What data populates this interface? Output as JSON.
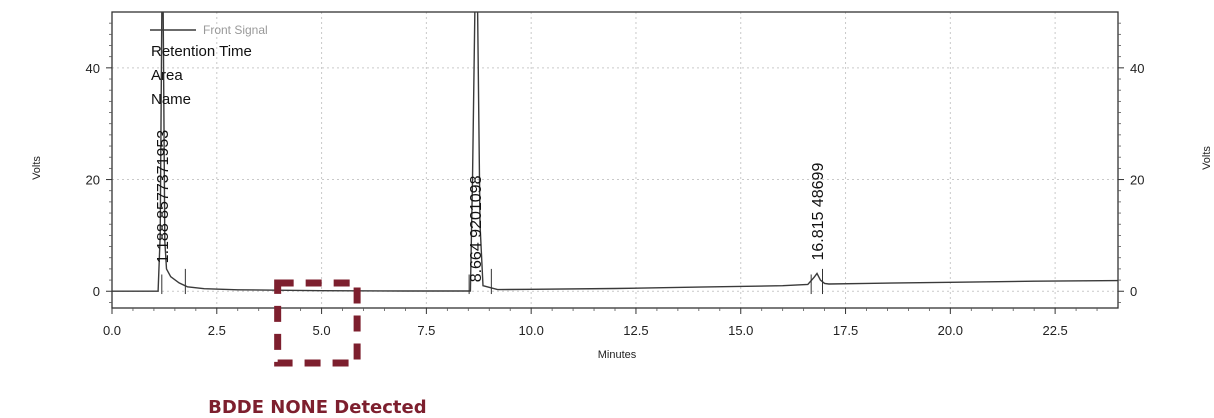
{
  "chart_data": {
    "type": "line",
    "title": "",
    "xlabel": "Minutes",
    "ylabel": "Volts",
    "ylabel_right": "Volts",
    "xlim": [
      0,
      24
    ],
    "ylim": [
      -3,
      50
    ],
    "x_ticks": [
      0,
      2.5,
      5,
      7.5,
      10,
      12.5,
      15,
      17.5,
      20,
      22.5
    ],
    "x_tick_labels": [
      "0.0",
      "2.5",
      "5.0",
      "7.5",
      "10.0",
      "12.5",
      "15.0",
      "17.5",
      "20.0",
      "22.5"
    ],
    "y_ticks": [
      0,
      20,
      40
    ],
    "y_tick_labels": [
      "0",
      "20",
      "40"
    ],
    "grid": true,
    "legend_placement": "top-left",
    "series": [
      {
        "name": "Front Signal",
        "color": "#3a3a3a",
        "x": [
          0,
          1.1,
          1.15,
          1.19,
          1.22,
          1.26,
          1.3,
          1.4,
          1.6,
          1.8,
          2.2,
          3,
          5,
          7,
          8.55,
          8.6,
          8.66,
          8.72,
          8.78,
          8.85,
          9.2,
          10,
          12,
          14,
          16,
          16.6,
          16.75,
          16.82,
          16.9,
          17.0,
          17.1,
          18,
          20,
          22,
          24
        ],
        "y": [
          0,
          0,
          10,
          52,
          52,
          9,
          4,
          2.6,
          1.5,
          0.8,
          0.45,
          0.25,
          0.1,
          0.05,
          0.05,
          20,
          52,
          52,
          12,
          1,
          0.3,
          0.35,
          0.5,
          0.75,
          1,
          1.2,
          2.5,
          3.2,
          2,
          1.4,
          1.3,
          1.4,
          1.6,
          1.8,
          1.9
        ]
      }
    ],
    "peaks": [
      {
        "retention_time": "1.188",
        "area": "8577371953",
        "label": "1.188 8577371953"
      },
      {
        "retention_time": "8.664",
        "area": "9201098",
        "label": "8.664 9201098"
      },
      {
        "retention_time": "16.815",
        "area": "48699",
        "label": "16.815 48699"
      }
    ],
    "legend_entries": [
      "Retention Time",
      "Area",
      "Name"
    ],
    "annotations": [
      {
        "text": "BDDE NONE Detected",
        "x_range": [
          4,
          5.8
        ],
        "color": "#7d1f2e"
      }
    ]
  }
}
